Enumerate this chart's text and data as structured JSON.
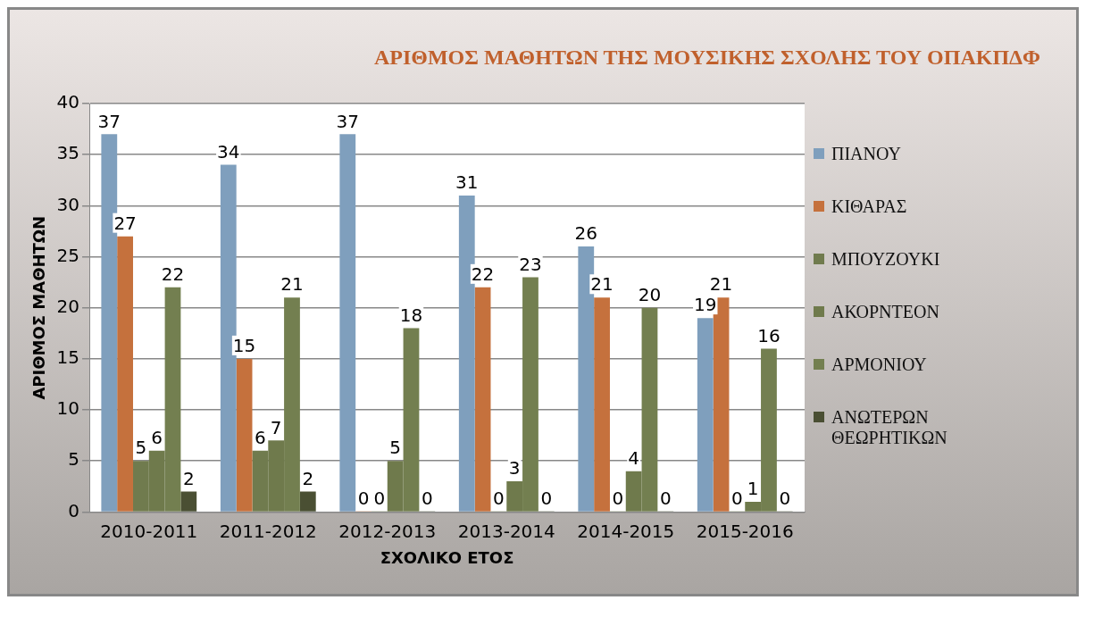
{
  "chart_data": {
    "type": "bar",
    "title": "ΑΡΙΘΜΟΣ ΜΑΘΗΤΩΝ ΤΗΣ ΜΟΥΣΙΚΗΣ ΣΧΟΛΗΣ ΤΟΥ ΟΠΑΚΠΔΦ",
    "xlabel": "ΣΧΟΛΙΚΟ ΕΤΟΣ",
    "ylabel": "ΑΡΙΘΜΟΣ ΜΑΘΗΤΩΝ",
    "categories": [
      "2010-2011",
      "2011-2012",
      "2012-2013",
      "2013-2014",
      "2014-2015",
      "2015-2016"
    ],
    "series": [
      {
        "name": "ΠΙΑΝΟΥ",
        "color": "#7f9fbd",
        "values": [
          37,
          34,
          37,
          31,
          26,
          19
        ]
      },
      {
        "name": "ΚΙΘΑΡΑΣ",
        "color": "#c5713d",
        "values": [
          27,
          15,
          0,
          22,
          21,
          21
        ]
      },
      {
        "name": "ΜΠΟΥΖΟΥΚΙ",
        "color": "#707b4e",
        "values": [
          5,
          6,
          0,
          0,
          0,
          0
        ]
      },
      {
        "name": "ΑΚΟΡΝΤΕΟΝ",
        "color": "#6f7a4c",
        "values": [
          6,
          7,
          5,
          3,
          4,
          1
        ]
      },
      {
        "name": "ΑΡΜΟΝΙΟΥ",
        "color": "#737f50",
        "values": [
          22,
          21,
          18,
          23,
          20,
          16
        ]
      },
      {
        "name": "ΑΝΩΤΕΡΩΝ ΘΕΩΡΗΤΙΚΩΝ",
        "color": "#4a4f33",
        "values": [
          2,
          2,
          0,
          0,
          0,
          0
        ]
      }
    ],
    "ylim": [
      0,
      40
    ],
    "yticks": [
      0,
      5,
      10,
      15,
      20,
      25,
      30,
      35,
      40
    ],
    "grid": "y",
    "legend": "right",
    "data_labels": true
  }
}
